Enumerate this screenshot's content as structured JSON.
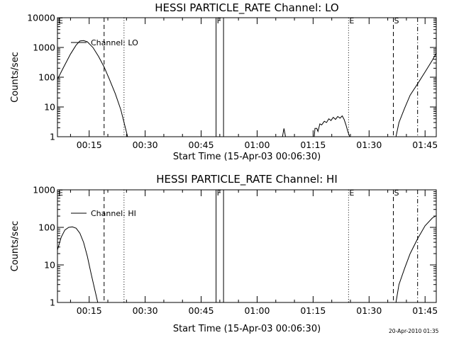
{
  "chart_data": [
    {
      "type": "line",
      "title": "HESSI PARTICLE_RATE Channel: LO",
      "xlabel": "Start Time (15-Apr-03 00:06:30)",
      "ylabel": "Counts/sec",
      "yscale": "log",
      "ylim": [
        1,
        10000
      ],
      "xlim_minutes": [
        6.5,
        108
      ],
      "xtick_labels": [
        "00:15",
        "00:30",
        "00:45",
        "01:00",
        "01:15",
        "01:30",
        "01:45"
      ],
      "ytick_labels": [
        "1",
        "10",
        "100",
        "1000",
        "10000"
      ],
      "legend": {
        "label": "Channel: LO",
        "position": "top-left"
      },
      "markers": [
        {
          "label": "E",
          "time": "00:06:30",
          "style": "none"
        },
        {
          "label": "",
          "time": "00:19:00",
          "style": "dashed"
        },
        {
          "label": "",
          "time": "00:24:20",
          "style": "dotted"
        },
        {
          "label": "F",
          "time": "00:49:00",
          "style": "solid"
        },
        {
          "label": "",
          "time": "00:51:00",
          "style": "solid"
        },
        {
          "label": "E",
          "time": "01:24:30",
          "style": "dotted"
        },
        {
          "label": "S",
          "time": "01:36:30",
          "style": "dashed"
        },
        {
          "label": "",
          "time": "01:43:00",
          "style": "dashdot"
        }
      ],
      "series": [
        {
          "name": "Channel: LO",
          "segments": [
            [
              [
                6.5,
                85
              ],
              [
                8,
                200
              ],
              [
                10,
                600
              ],
              [
                11.5,
                1200
              ],
              [
                12.5,
                1650
              ],
              [
                13.5,
                1700
              ],
              [
                14.5,
                1550
              ],
              [
                16,
                1000
              ],
              [
                17.5,
                500
              ],
              [
                19,
                220
              ],
              [
                20.5,
                80
              ],
              [
                22,
                28
              ],
              [
                23.5,
                8
              ],
              [
                24.5,
                2.5
              ],
              [
                25.3,
                1
              ]
            ],
            [
              [
                66.8,
                1
              ],
              [
                67.2,
                1.9
              ],
              [
                67.6,
                1
              ]
            ],
            [
              [
                75.3,
                1
              ],
              [
                75.5,
                1.9
              ],
              [
                76,
                1.9
              ],
              [
                76.3,
                1.5
              ],
              [
                76.8,
                2.7
              ],
              [
                77.3,
                2.5
              ],
              [
                78,
                3.3
              ],
              [
                78.6,
                3.0
              ],
              [
                79.2,
                4.0
              ],
              [
                79.8,
                3.5
              ],
              [
                80.4,
                4.5
              ],
              [
                81,
                3.8
              ],
              [
                81.6,
                4.8
              ],
              [
                82.2,
                4.2
              ],
              [
                82.8,
                5.0
              ],
              [
                83.3,
                3.8
              ],
              [
                83.8,
                2.5
              ],
              [
                84.3,
                1.5
              ],
              [
                84.8,
                1
              ]
            ],
            [
              [
                97.2,
                1
              ],
              [
                98,
                3
              ],
              [
                99.5,
                9
              ],
              [
                101,
                25
              ],
              [
                103,
                60
              ],
              [
                105,
                150
              ],
              [
                107,
                380
              ],
              [
                108,
                650
              ]
            ]
          ]
        }
      ]
    },
    {
      "type": "line",
      "title": "HESSI PARTICLE_RATE Channel: HI",
      "xlabel": "Start Time (15-Apr-03 00:06:30)",
      "ylabel": "Counts/sec",
      "yscale": "log",
      "ylim": [
        1,
        1000
      ],
      "xlim_minutes": [
        6.5,
        108
      ],
      "xtick_labels": [
        "00:15",
        "00:30",
        "00:45",
        "01:00",
        "01:15",
        "01:30",
        "01:45"
      ],
      "ytick_labels": [
        "1",
        "10",
        "100",
        "1000"
      ],
      "legend": {
        "label": "Channel: HI",
        "position": "top-left"
      },
      "markers": [
        {
          "label": "E",
          "time": "00:06:30",
          "style": "none"
        },
        {
          "label": "",
          "time": "00:19:00",
          "style": "dashed"
        },
        {
          "label": "",
          "time": "00:24:20",
          "style": "dotted"
        },
        {
          "label": "F",
          "time": "00:49:00",
          "style": "solid"
        },
        {
          "label": "",
          "time": "00:51:00",
          "style": "solid"
        },
        {
          "label": "E",
          "time": "01:24:30",
          "style": "dotted"
        },
        {
          "label": "S",
          "time": "01:36:30",
          "style": "dashed"
        },
        {
          "label": "",
          "time": "01:43:00",
          "style": "dashdot"
        }
      ],
      "series": [
        {
          "name": "Channel: HI",
          "segments": [
            [
              [
                6.5,
                25
              ],
              [
                7.5,
                55
              ],
              [
                8.5,
                85
              ],
              [
                9.5,
                100
              ],
              [
                10.5,
                103
              ],
              [
                11.5,
                95
              ],
              [
                12.5,
                70
              ],
              [
                13.5,
                40
              ],
              [
                14.5,
                17
              ],
              [
                15.5,
                6
              ],
              [
                16.5,
                2.2
              ],
              [
                17.3,
                1
              ]
            ],
            [
              [
                97.2,
                1
              ],
              [
                98,
                3
              ],
              [
                99.5,
                8
              ],
              [
                101,
                20
              ],
              [
                103,
                50
              ],
              [
                105,
                110
              ],
              [
                107,
                180
              ],
              [
                108,
                205
              ]
            ]
          ]
        }
      ]
    }
  ],
  "timestamp": "20-Apr-2010 01:35"
}
